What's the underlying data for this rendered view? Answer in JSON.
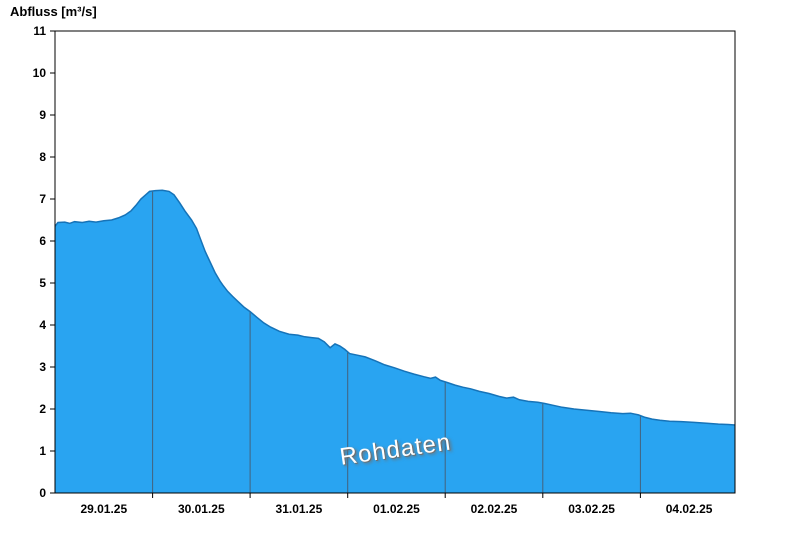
{
  "header": {
    "title": "Abfluss [m³/s]"
  },
  "watermark": {
    "label": "Rohdaten"
  },
  "chart_data": {
    "type": "area",
    "title": "Abfluss [m³/s]",
    "ylabel": "Abfluss [m³/s]",
    "xlabel": "",
    "ylim": [
      0,
      11
    ],
    "yticks": [
      0,
      1,
      2,
      3,
      4,
      5,
      6,
      7,
      8,
      9,
      10,
      11
    ],
    "x_range_days": [
      0,
      6.97
    ],
    "day_gridlines": [
      1,
      2,
      3,
      4,
      5,
      6
    ],
    "x_tick_labels": [
      {
        "day": 0.5,
        "label": "29.01.25"
      },
      {
        "day": 1.5,
        "label": "30.01.25"
      },
      {
        "day": 2.5,
        "label": "31.01.25"
      },
      {
        "day": 3.5,
        "label": "01.02.25"
      },
      {
        "day": 4.5,
        "label": "02.02.25"
      },
      {
        "day": 5.5,
        "label": "03.02.25"
      },
      {
        "day": 6.5,
        "label": "04.02.25"
      }
    ],
    "legend_position": "none",
    "grid": "vertical-day-lines-clipped-to-area",
    "colors": {
      "fill": "#29a4f1",
      "line": "#1673b8",
      "grid": "#44617c",
      "axis": "#000000",
      "watermark_text": "#ffffff",
      "watermark_shadow": "#6e6e6e"
    },
    "series": [
      {
        "name": "Rohdaten",
        "points": [
          [
            0.0,
            6.35
          ],
          [
            0.03,
            6.44
          ],
          [
            0.1,
            6.45
          ],
          [
            0.15,
            6.42
          ],
          [
            0.2,
            6.46
          ],
          [
            0.28,
            6.44
          ],
          [
            0.35,
            6.47
          ],
          [
            0.42,
            6.45
          ],
          [
            0.5,
            6.48
          ],
          [
            0.58,
            6.5
          ],
          [
            0.65,
            6.55
          ],
          [
            0.72,
            6.62
          ],
          [
            0.78,
            6.72
          ],
          [
            0.83,
            6.85
          ],
          [
            0.88,
            7.0
          ],
          [
            0.93,
            7.1
          ],
          [
            0.97,
            7.18
          ],
          [
            1.03,
            7.2
          ],
          [
            1.1,
            7.21
          ],
          [
            1.17,
            7.18
          ],
          [
            1.22,
            7.1
          ],
          [
            1.28,
            6.9
          ],
          [
            1.33,
            6.72
          ],
          [
            1.4,
            6.5
          ],
          [
            1.45,
            6.3
          ],
          [
            1.49,
            6.05
          ],
          [
            1.54,
            5.75
          ],
          [
            1.59,
            5.5
          ],
          [
            1.64,
            5.25
          ],
          [
            1.69,
            5.05
          ],
          [
            1.72,
            4.95
          ],
          [
            1.77,
            4.8
          ],
          [
            1.82,
            4.68
          ],
          [
            1.88,
            4.55
          ],
          [
            1.94,
            4.42
          ],
          [
            2.0,
            4.32
          ],
          [
            2.07,
            4.18
          ],
          [
            2.14,
            4.05
          ],
          [
            2.21,
            3.95
          ],
          [
            2.3,
            3.85
          ],
          [
            2.4,
            3.78
          ],
          [
            2.49,
            3.76
          ],
          [
            2.56,
            3.72
          ],
          [
            2.63,
            3.7
          ],
          [
            2.7,
            3.68
          ],
          [
            2.76,
            3.6
          ],
          [
            2.82,
            3.46
          ],
          [
            2.87,
            3.55
          ],
          [
            2.92,
            3.5
          ],
          [
            2.97,
            3.42
          ],
          [
            3.02,
            3.32
          ],
          [
            3.1,
            3.28
          ],
          [
            3.18,
            3.24
          ],
          [
            3.28,
            3.15
          ],
          [
            3.38,
            3.05
          ],
          [
            3.48,
            2.98
          ],
          [
            3.58,
            2.9
          ],
          [
            3.68,
            2.83
          ],
          [
            3.78,
            2.77
          ],
          [
            3.85,
            2.73
          ],
          [
            3.9,
            2.76
          ],
          [
            3.95,
            2.68
          ],
          [
            4.02,
            2.63
          ],
          [
            4.1,
            2.57
          ],
          [
            4.18,
            2.52
          ],
          [
            4.26,
            2.48
          ],
          [
            4.35,
            2.42
          ],
          [
            4.45,
            2.37
          ],
          [
            4.55,
            2.3
          ],
          [
            4.63,
            2.26
          ],
          [
            4.7,
            2.28
          ],
          [
            4.76,
            2.22
          ],
          [
            4.85,
            2.18
          ],
          [
            4.95,
            2.16
          ],
          [
            5.02,
            2.13
          ],
          [
            5.1,
            2.09
          ],
          [
            5.2,
            2.04
          ],
          [
            5.32,
            2.0
          ],
          [
            5.45,
            1.97
          ],
          [
            5.58,
            1.94
          ],
          [
            5.7,
            1.91
          ],
          [
            5.82,
            1.89
          ],
          [
            5.9,
            1.9
          ],
          [
            5.98,
            1.86
          ],
          [
            6.05,
            1.8
          ],
          [
            6.12,
            1.76
          ],
          [
            6.2,
            1.73
          ],
          [
            6.3,
            1.71
          ],
          [
            6.42,
            1.7
          ],
          [
            6.55,
            1.68
          ],
          [
            6.68,
            1.66
          ],
          [
            6.8,
            1.64
          ],
          [
            6.9,
            1.63
          ],
          [
            6.97,
            1.62
          ]
        ]
      }
    ]
  }
}
